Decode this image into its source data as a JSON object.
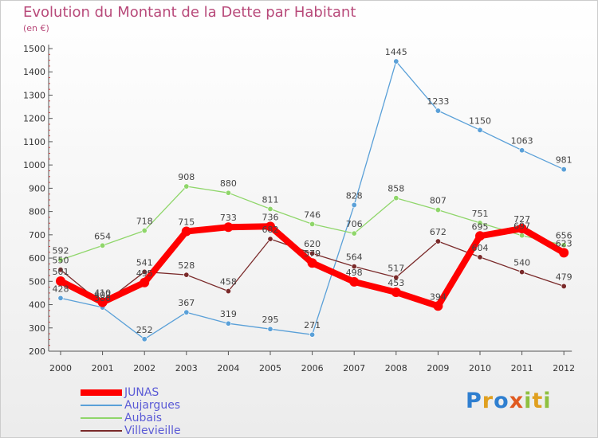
{
  "title": "Evolution du Montant de la Dette par Habitant",
  "subtitle": "(en €)",
  "logo": "Proxiti",
  "chart_data": {
    "type": "line",
    "x": [
      "2000",
      "2001",
      "2002",
      "2003",
      "2004",
      "2005",
      "2006",
      "2007",
      "2008",
      "2009",
      "2010",
      "2011",
      "2012"
    ],
    "ylim": [
      200,
      1500
    ],
    "yticks": [
      200,
      300,
      400,
      500,
      600,
      700,
      800,
      900,
      1000,
      1100,
      1200,
      1300,
      1400,
      1500
    ],
    "grid": false,
    "legend": "bottom-left",
    "series": [
      {
        "name": "JUNAS",
        "color": "#ff0000",
        "values": [
          501,
          410,
          495,
          715,
          733,
          736,
          579,
          498,
          453,
          394,
          695,
          727,
          623
        ]
      },
      {
        "name": "Aujargues",
        "color": "#5aa0d8",
        "values": [
          428,
          388,
          252,
          367,
          319,
          295,
          271,
          828,
          1445,
          1233,
          1150,
          1063,
          981
        ]
      },
      {
        "name": "Aubais",
        "color": "#8fd66a",
        "values": [
          592,
          654,
          718,
          908,
          880,
          811,
          746,
          706,
          858,
          807,
          751,
          697,
          656
        ]
      },
      {
        "name": "Villevieille",
        "color": "#7a2a2a",
        "values": [
          550,
          402,
          541,
          528,
          458,
          682,
          620,
          564,
          517,
          672,
          604,
          540,
          479
        ]
      }
    ]
  }
}
